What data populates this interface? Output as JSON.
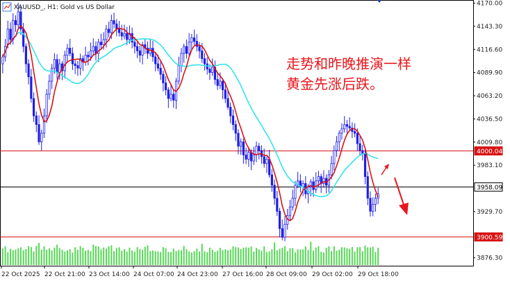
{
  "header": {
    "symbol_title": "XAUUSD_, H1:  Gold vs US Dollar"
  },
  "annotation": {
    "line1": "走势和昨晚推演一样",
    "line2": "黄金先涨后跌。",
    "color": "#e8161c"
  },
  "colors": {
    "bull": "#1e1ee6",
    "bear": "#1e1ee6",
    "ma_fast": "#d81313",
    "ma_slow": "#33e3ec",
    "hline_red": "#d81313",
    "hline_black": "#000000",
    "volume": "#55d855",
    "arrow": "#e8161c"
  },
  "icons": {
    "chart_icon": "chart-icon",
    "diamond": "diamond-marker-icon"
  },
  "chart_data": {
    "type": "candlestick",
    "ylim": [
      3868,
      4172
    ],
    "y_ticks": [
      "4170.00",
      "4143.30",
      "4116.60",
      "4089.90",
      "4063.20",
      "4036.50",
      "4009.80",
      "3983.10",
      "3929.70",
      "3876.30"
    ],
    "y_tick_values": [
      4170.0,
      4143.3,
      4116.6,
      4089.9,
      4063.2,
      4036.5,
      4009.8,
      3983.1,
      3929.7,
      3876.3
    ],
    "x_ticks": [
      "22 Oct 2025",
      "22 Oct 21:00",
      "23 Oct 14:00",
      "24 Oct 07:00",
      "24 Oct 23:00",
      "27 Oct 16:00",
      "28 Oct 09:00",
      "29 Oct 02:00",
      "29 Oct 18:00"
    ],
    "hlines": [
      {
        "value": 4000.04,
        "label": "4000.04",
        "style": "red"
      },
      {
        "value": 3958.09,
        "label": "3958.09",
        "style": "black"
      },
      {
        "value": 3900.59,
        "label": "3900.59",
        "style": "red"
      }
    ],
    "close": [
      4108,
      4120,
      4140,
      4128,
      4150,
      4145,
      4160,
      4140,
      4120,
      4100,
      4085,
      4060,
      4040,
      4030,
      4010,
      4020,
      4040,
      4065,
      4080,
      4095,
      4105,
      4090,
      4100,
      4092,
      4110,
      4118,
      4112,
      4100,
      4098,
      4095,
      4106,
      4102,
      4110,
      4108,
      4115,
      4120,
      4112,
      4125,
      4122,
      4128,
      4140,
      4136,
      4150,
      4146,
      4140,
      4136,
      4132,
      4135,
      4128,
      4135,
      4125,
      4120,
      4115,
      4110,
      4122,
      4118,
      4112,
      4118,
      4108,
      4100,
      4095,
      4088,
      4078,
      4070,
      4060,
      4065,
      4058,
      4080,
      4098,
      4112,
      4120,
      4112,
      4125,
      4130,
      4126,
      4120,
      4115,
      4106,
      4100,
      4094,
      4090,
      4096,
      4082,
      4075,
      4080,
      4070,
      4060,
      4050,
      4040,
      4030,
      4020,
      4005,
      4010,
      3995,
      3990,
      3998,
      3988,
      3995,
      4005,
      4000,
      3993,
      3985,
      3990,
      3972,
      3960,
      3945,
      3930,
      3910,
      3900,
      3915,
      3925,
      3935,
      3945,
      3960,
      3965,
      3958,
      3962,
      3950,
      3958,
      3964,
      3955,
      3965,
      3970,
      3962,
      3968,
      3960,
      3972,
      3985,
      4000,
      4010,
      4020,
      4025,
      4030,
      4028,
      4026,
      4022,
      4020,
      4008,
      4000,
      3996,
      3970,
      3945,
      3930,
      3938,
      3945,
      3950
    ],
    "open": [
      4100,
      4108,
      4122,
      4140,
      4128,
      4150,
      4145,
      4160,
      4140,
      4120,
      4100,
      4085,
      4060,
      4040,
      4030,
      4010,
      4020,
      4040,
      4065,
      4080,
      4095,
      4105,
      4090,
      4100,
      4092,
      4110,
      4118,
      4112,
      4100,
      4098,
      4095,
      4106,
      4102,
      4110,
      4108,
      4115,
      4120,
      4112,
      4125,
      4122,
      4128,
      4140,
      4136,
      4150,
      4146,
      4140,
      4136,
      4132,
      4135,
      4128,
      4135,
      4125,
      4120,
      4115,
      4110,
      4122,
      4118,
      4112,
      4118,
      4108,
      4100,
      4095,
      4088,
      4078,
      4070,
      4060,
      4065,
      4058,
      4080,
      4098,
      4112,
      4120,
      4112,
      4125,
      4130,
      4126,
      4120,
      4115,
      4106,
      4100,
      4094,
      4090,
      4096,
      4082,
      4075,
      4080,
      4070,
      4060,
      4050,
      4040,
      4030,
      4020,
      4005,
      4010,
      3995,
      3990,
      3998,
      3988,
      3995,
      4005,
      4000,
      3993,
      3985,
      3990,
      3972,
      3960,
      3945,
      3930,
      3910,
      3900,
      3915,
      3925,
      3935,
      3945,
      3960,
      3965,
      3958,
      3962,
      3950,
      3958,
      3964,
      3955,
      3965,
      3970,
      3962,
      3968,
      3960,
      3972,
      3985,
      4000,
      4010,
      4020,
      4025,
      4030,
      4028,
      4026,
      4022,
      4020,
      4008,
      4000,
      3996,
      3970,
      3945,
      3930,
      3938,
      3945
    ],
    "volume_level": 0.6,
    "time_marker_x_index": 143
  }
}
